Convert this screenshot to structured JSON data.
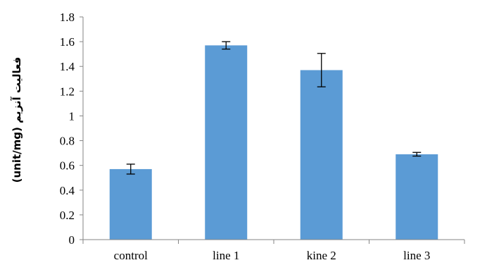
{
  "chart_data": {
    "type": "bar",
    "categories": [
      "control",
      "line 1",
      "kine 2",
      "line 3"
    ],
    "values": [
      0.57,
      1.57,
      1.37,
      0.69
    ],
    "errors": [
      0.04,
      0.03,
      0.135,
      0.015
    ],
    "ylabel": "(unit/mg) فعالیت آنزیم",
    "ylim": [
      0,
      1.8
    ],
    "yticks": [
      "0",
      "0.2",
      "0.4",
      "0.6",
      "0.8",
      "1",
      "1.2",
      "1.4",
      "1.6",
      "1.8"
    ],
    "grid": false,
    "bar_color": "#5b9bd5"
  }
}
